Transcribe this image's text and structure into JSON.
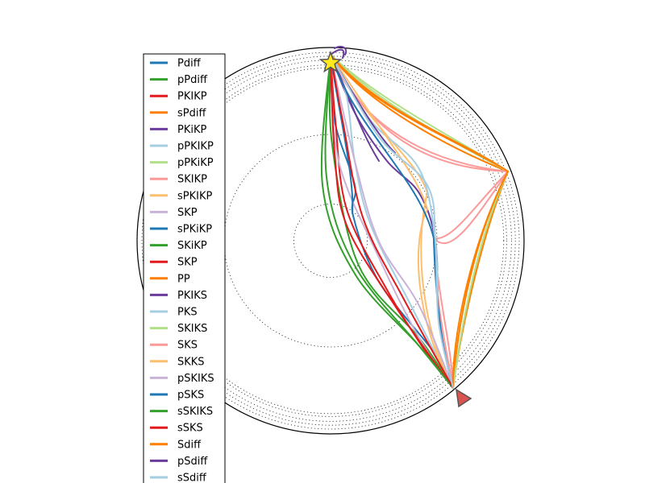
{
  "chart_data": {
    "type": "line",
    "projection": "polar",
    "grid": true,
    "legend_placement": "left",
    "markers": {
      "source": {
        "shape": "star",
        "color": "#ffea1f",
        "edge": "#555555"
      },
      "receiver": {
        "shape": "triangle",
        "color": "#d9534f",
        "edge": "#555555"
      }
    },
    "series": [
      {
        "name": "Pdiff",
        "color": "#1f78b4"
      },
      {
        "name": "pPdiff",
        "color": "#33a02c"
      },
      {
        "name": "PKIKP",
        "color": "#e31a1c"
      },
      {
        "name": "sPdiff",
        "color": "#ff7f00"
      },
      {
        "name": "PKiKP",
        "color": "#6a3d9a"
      },
      {
        "name": "pPKIKP",
        "color": "#a6cee3"
      },
      {
        "name": "pPKiKP",
        "color": "#b2df8a"
      },
      {
        "name": "SKIKP",
        "color": "#fb9a99"
      },
      {
        "name": "sPKIKP",
        "color": "#fdbf6f"
      },
      {
        "name": "SKP",
        "color": "#cab2d6"
      },
      {
        "name": "sPKiKP",
        "color": "#1f78b4"
      },
      {
        "name": "SKiKP",
        "color": "#33a02c"
      },
      {
        "name": "SKP",
        "color": "#e31a1c"
      },
      {
        "name": "PP",
        "color": "#ff7f00"
      },
      {
        "name": "PKIKS",
        "color": "#6a3d9a"
      },
      {
        "name": "PKS",
        "color": "#a6cee3"
      },
      {
        "name": "SKIKS",
        "color": "#b2df8a"
      },
      {
        "name": "SKS",
        "color": "#fb9a99"
      },
      {
        "name": "SKKS",
        "color": "#fdbf6f"
      },
      {
        "name": "pSKIKS",
        "color": "#cab2d6"
      },
      {
        "name": "pSKS",
        "color": "#1f78b4"
      },
      {
        "name": "sSKIKS",
        "color": "#33a02c"
      },
      {
        "name": "sSKS",
        "color": "#e31a1c"
      },
      {
        "name": "Sdiff",
        "color": "#ff7f00"
      },
      {
        "name": "pSdiff",
        "color": "#6a3d9a"
      },
      {
        "name": "sSdiff",
        "color": "#a6cee3"
      }
    ]
  }
}
